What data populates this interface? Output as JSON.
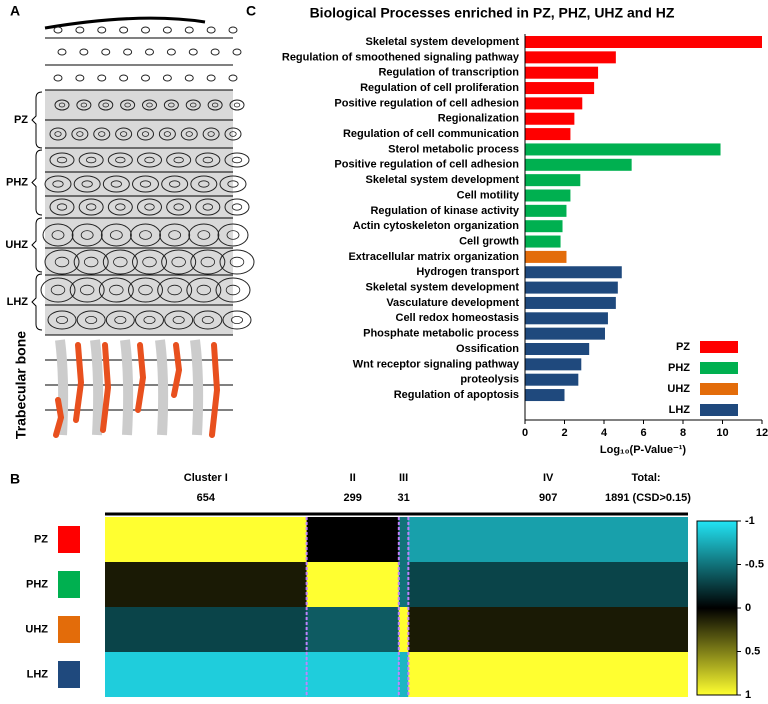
{
  "panel_labels": [
    "A",
    "B",
    "C"
  ],
  "panel_a": {
    "zones": [
      "PZ",
      "PHZ",
      "UHZ",
      "LHZ"
    ],
    "bone_label": "Trabecular bone"
  },
  "chart_data": [
    {
      "type": "hbar",
      "title": "Biological Processes enriched in PZ, PHZ, UHZ  and HZ",
      "xlabel": "Log₁₀(P-Value⁻¹)",
      "categories": [
        "Skeletal system development",
        "Regulation of smoothened signaling pathway",
        "Regulation of transcription",
        "Regulation of cell proliferation",
        "Positive regulation of cell adhesion",
        "Regionalization",
        "Regulation of cell communication",
        "Sterol metabolic process",
        "Positive regulation of cell adhesion",
        "Skeletal system development",
        "Cell motility",
        "Regulation of kinase activity",
        "Actin cytoskeleton organization",
        "Cell growth",
        "Extracellular matrix organization",
        "Hydrogen transport",
        "Skeletal system development",
        "Vasculature development",
        "Cell redox homeostasis",
        "Phosphate metabolic process",
        "Ossification",
        "Wnt receptor signaling pathway",
        "proteolysis",
        "Regulation of apoptosis"
      ],
      "series": [
        {
          "name": "PZ",
          "color": "#ff0000",
          "values": [
            12.0,
            4.6,
            3.7,
            3.5,
            2.9,
            2.5,
            2.3,
            null,
            null,
            null,
            null,
            null,
            null,
            null,
            null,
            null,
            null,
            null,
            null,
            null,
            null,
            null,
            null,
            null
          ]
        },
        {
          "name": "PHZ",
          "color": "#00b050",
          "values": [
            null,
            null,
            null,
            null,
            null,
            null,
            null,
            9.9,
            5.4,
            2.8,
            2.3,
            2.1,
            1.9,
            1.8,
            null,
            null,
            null,
            null,
            null,
            null,
            null,
            null,
            null,
            null
          ]
        },
        {
          "name": "UHZ",
          "color": "#e36c0a",
          "values": [
            null,
            null,
            null,
            null,
            null,
            null,
            null,
            null,
            null,
            null,
            null,
            null,
            null,
            null,
            2.1,
            null,
            null,
            null,
            null,
            null,
            null,
            null,
            null,
            null
          ]
        },
        {
          "name": "LHZ",
          "color": "#1f497d",
          "values": [
            null,
            null,
            null,
            null,
            null,
            null,
            null,
            null,
            null,
            null,
            null,
            null,
            null,
            null,
            null,
            4.9,
            4.7,
            4.6,
            4.2,
            4.05,
            3.25,
            2.85,
            2.7,
            2.0
          ]
        }
      ],
      "xlim": [
        0,
        12
      ],
      "xticks": [
        0,
        2,
        4,
        6,
        8,
        10,
        12
      ]
    },
    {
      "type": "heatmap",
      "clusters": [
        "Cluster I",
        "II",
        "III",
        "IV"
      ],
      "counts": [
        654,
        299,
        31,
        907
      ],
      "total_label": "Total:",
      "total": "1891 (CSD>0.15)",
      "rows": [
        "PZ",
        "PHZ",
        "UHZ",
        "LHZ"
      ],
      "row_colors": [
        "#ff0000",
        "#00b050",
        "#e36c0a",
        "#1f497d"
      ],
      "values": [
        [
          1,
          0,
          -0.5,
          -0.7
        ],
        [
          0.1,
          1,
          -0.5,
          -0.3
        ],
        [
          -0.3,
          -0.4,
          1,
          0.1
        ],
        [
          -0.9,
          -0.9,
          -0.8,
          1
        ]
      ],
      "clim": [
        -1,
        1
      ],
      "cticks": [
        -1,
        -0.5,
        0,
        0.5,
        1
      ]
    }
  ]
}
